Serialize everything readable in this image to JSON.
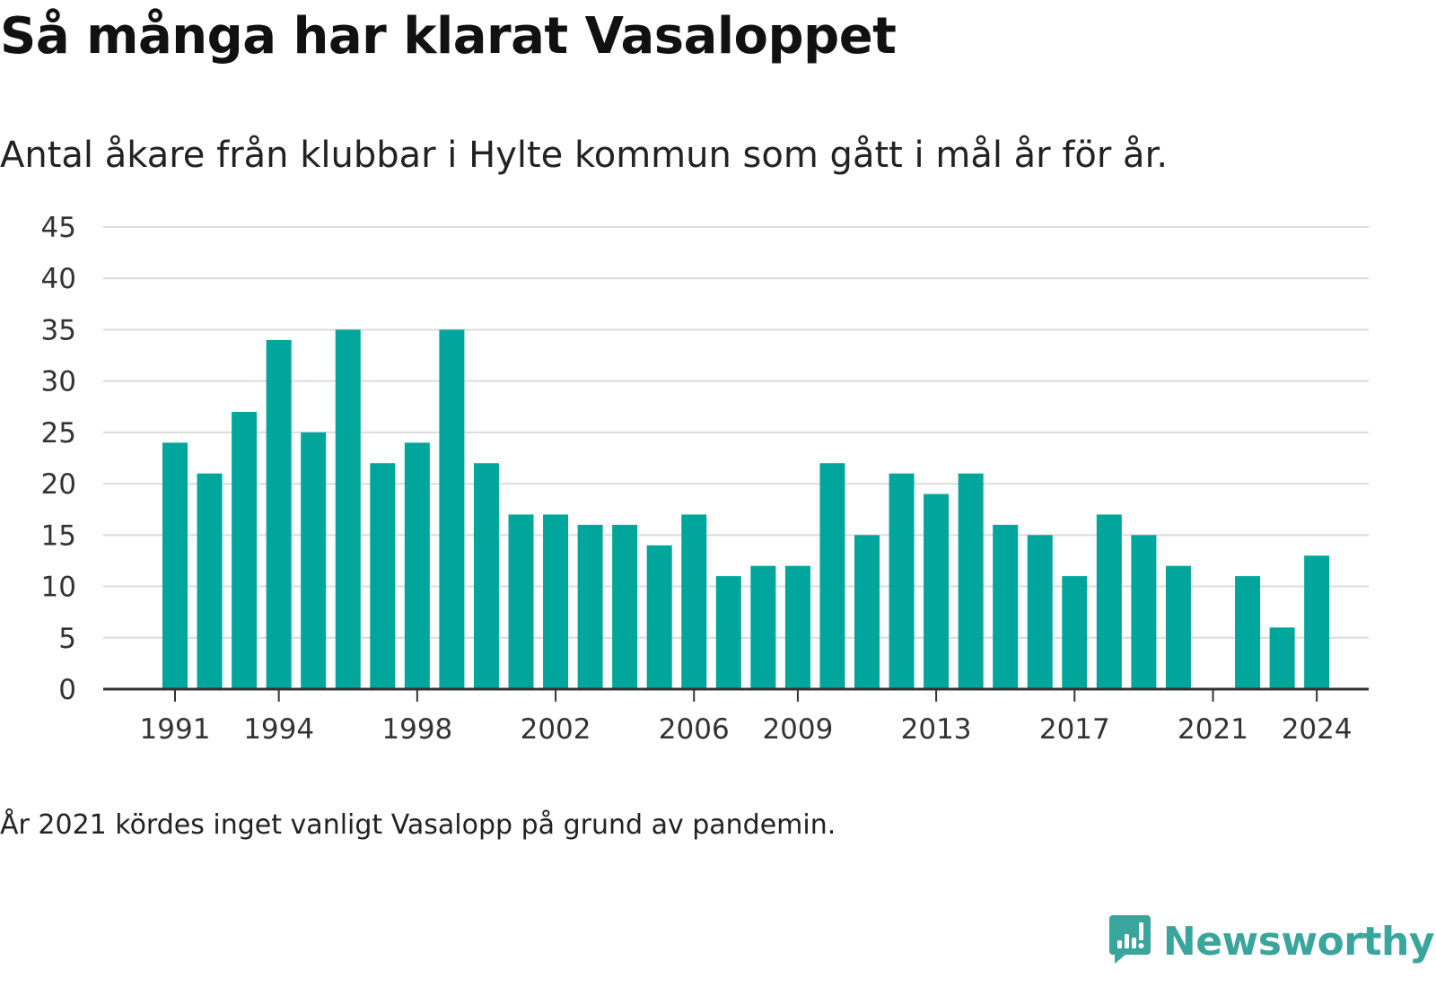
{
  "title": "Så många har klarat Vasaloppet",
  "subtitle": "Antal åkare från klubbar i Hylte kommun som gått i mål år för år.",
  "note": "År 2021 kördes inget vanligt Vasalopp på grund av pandemin.",
  "brand": {
    "name": "Newsworthy",
    "icon": "newsworthy-logo-icon",
    "color": "#3aa59c"
  },
  "chart_data": {
    "type": "bar",
    "categories": [
      1991,
      1992,
      1993,
      1994,
      1995,
      1996,
      1997,
      1998,
      1999,
      2000,
      2001,
      2002,
      2003,
      2004,
      2005,
      2006,
      2007,
      2008,
      2009,
      2010,
      2011,
      2012,
      2013,
      2014,
      2015,
      2016,
      2017,
      2018,
      2019,
      2020,
      2021,
      2022,
      2023,
      2024
    ],
    "values": [
      24,
      21,
      27,
      34,
      25,
      35,
      22,
      24,
      35,
      22,
      17,
      17,
      16,
      16,
      14,
      17,
      11,
      12,
      12,
      22,
      15,
      21,
      19,
      21,
      16,
      15,
      11,
      17,
      15,
      12,
      null,
      11,
      6,
      13
    ],
    "x_tick_labels": [
      "1991",
      "1994",
      "1998",
      "2002",
      "2006",
      "2009",
      "2013",
      "2017",
      "2021",
      "2024"
    ],
    "y_ticks": [
      0,
      5,
      10,
      15,
      20,
      25,
      30,
      35,
      40,
      45
    ],
    "ylim": [
      0,
      45
    ],
    "bar_color": "#00a69c",
    "grid": true,
    "xlabel": "",
    "ylabel": ""
  }
}
